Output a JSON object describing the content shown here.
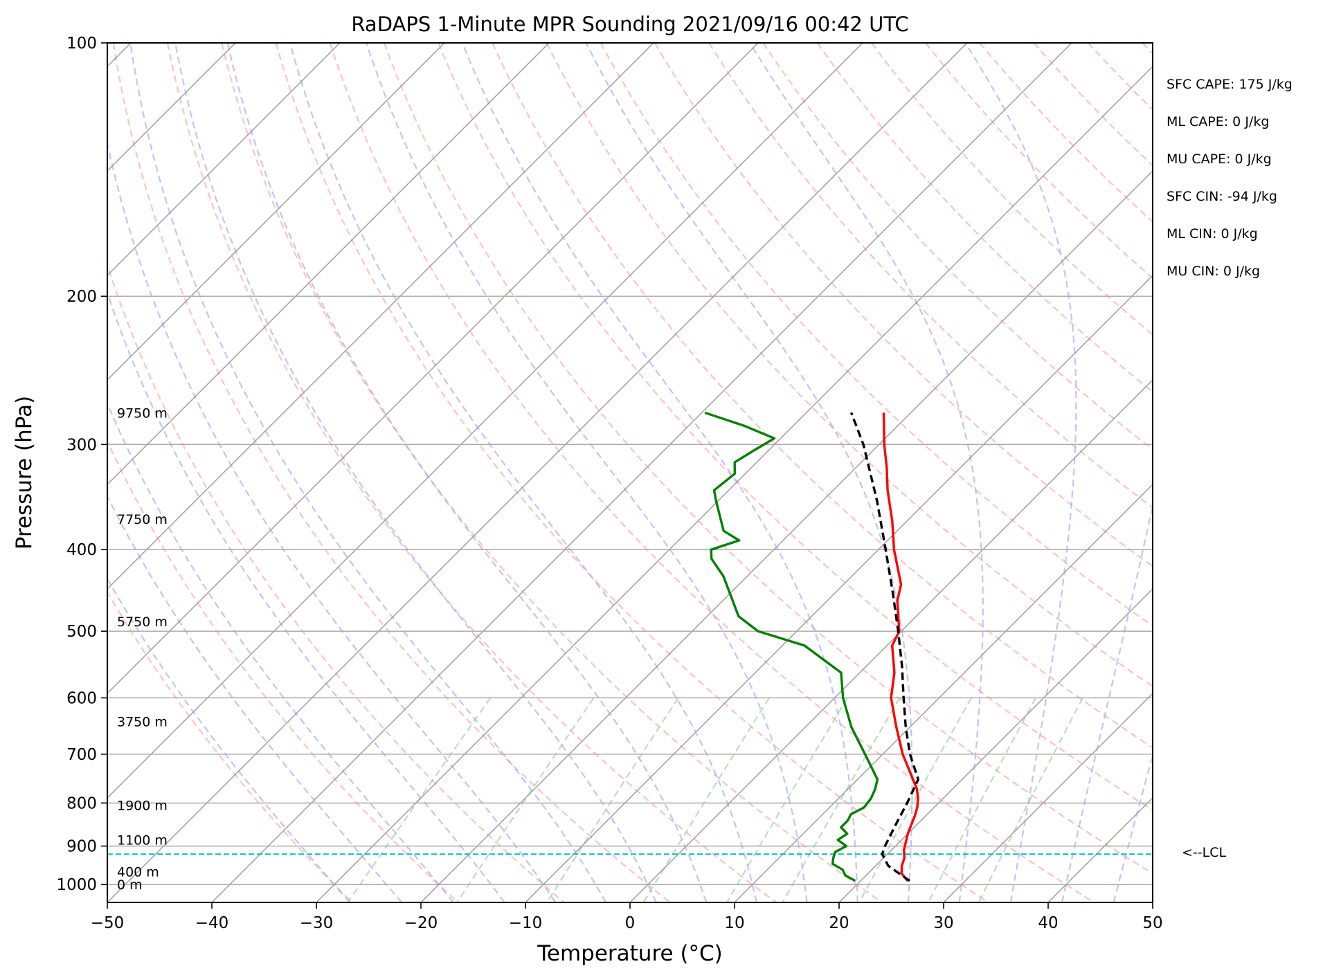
{
  "chart_data": {
    "type": "line",
    "title": "RaDAPS 1-Minute MPR Sounding 2021/09/16 00:42 UTC",
    "xlabel": "Temperature (°C)",
    "ylabel": "Pressure (hPa)",
    "xlim": [
      -50,
      50
    ],
    "ylim": [
      1050,
      100
    ],
    "y_scale": "log",
    "x_ticks": [
      -50,
      -40,
      -30,
      -20,
      -10,
      0,
      10,
      20,
      30,
      40,
      50
    ],
    "y_ticks": [
      100,
      200,
      300,
      400,
      500,
      600,
      700,
      800,
      900,
      1000
    ],
    "grid": true,
    "height_labels": [
      {
        "label": "9750 m",
        "pressure": 275
      },
      {
        "label": "7750 m",
        "pressure": 368
      },
      {
        "label": "5750 m",
        "pressure": 487
      },
      {
        "label": "3750 m",
        "pressure": 640
      },
      {
        "label": "1900 m",
        "pressure": 805
      },
      {
        "label": "1100 m",
        "pressure": 885
      },
      {
        "label": "400 m",
        "pressure": 965
      },
      {
        "label": "0 m",
        "pressure": 1000
      }
    ],
    "series": [
      {
        "color": "#ff0000",
        "pressure": [
          990,
          970,
          950,
          930,
          910,
          890,
          870,
          850,
          830,
          810,
          790,
          770,
          750,
          700,
          650,
          600,
          560,
          520,
          500,
          460,
          440,
          400,
          370,
          340,
          320,
          300,
          275
        ],
        "temperature": [
          24.5,
          23.2,
          22.5,
          22.0,
          21.2,
          20.6,
          20.0,
          19.5,
          19.0,
          18.4,
          17.6,
          16.6,
          15.3,
          11.9,
          8.7,
          5.4,
          3.3,
          0.5,
          -0.2,
          -3.3,
          -4.5,
          -8.5,
          -11.4,
          -14.8,
          -17.0,
          -19.5,
          -22.6
        ]
      },
      {
        "color": "#008000",
        "pressure": [
          990,
          975,
          960,
          945,
          930,
          915,
          900,
          885,
          870,
          855,
          840,
          825,
          810,
          790,
          770,
          750,
          700,
          650,
          600,
          560,
          520,
          500,
          480,
          430,
          410,
          400,
          390,
          380,
          350,
          340,
          325,
          315,
          305,
          295,
          285,
          275
        ],
        "temperature": [
          19.5,
          18.0,
          17.2,
          15.7,
          15.2,
          14.8,
          15.3,
          13.9,
          14.2,
          13.0,
          13.0,
          12.7,
          13.3,
          13.1,
          12.6,
          11.9,
          8.3,
          4.4,
          0.8,
          -1.8,
          -7.9,
          -13.7,
          -17.0,
          -22.3,
          -25.1,
          -26.0,
          -24.2,
          -26.6,
          -30.2,
          -31.4,
          -31.0,
          -32.1,
          -31.4,
          -30.6,
          -34.7,
          -39.7
        ]
      },
      {
        "color": "#000000",
        "dashed": true,
        "pressure": [
          990,
          950,
          920,
          900,
          850,
          800,
          750,
          700,
          650,
          600,
          550,
          500,
          450,
          400,
          350,
          300,
          275
        ],
        "temperature": [
          24.7,
          21.2,
          19.5,
          19.0,
          18.0,
          17.0,
          15.8,
          12.6,
          9.6,
          6.6,
          3.4,
          -0.3,
          -4.5,
          -9.3,
          -14.8,
          -21.5,
          -25.7
        ]
      }
    ],
    "lcl": {
      "pressure": 920,
      "label": "<--LCL"
    },
    "colors": {
      "isotherm": "#999999",
      "dry_adiabat": "#ff9999",
      "moist_adiabat": "#9999ff",
      "mixing_ratio": "#8fc98f",
      "lcl_line": "#00bfbf"
    }
  },
  "parameters": [
    "SFC CAPE: 175 J/kg",
    "ML CAPE: 0 J/kg",
    "MU CAPE: 0 J/kg",
    "SFC CIN: -94 J/kg",
    "ML CIN: 0 J/kg",
    "MU CIN: 0 J/kg"
  ]
}
